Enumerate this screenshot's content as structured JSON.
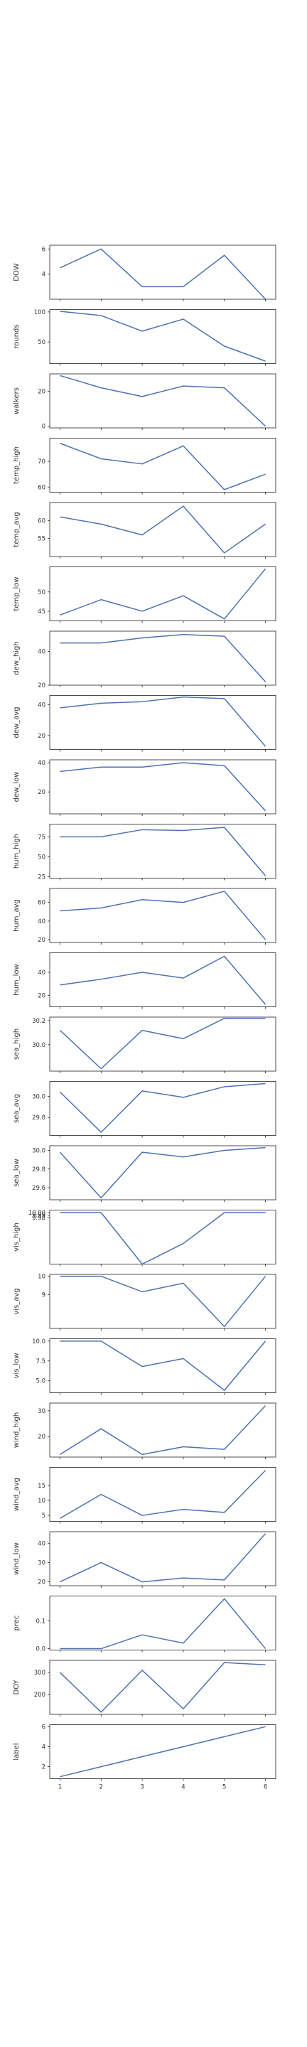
{
  "colors": {
    "line": "#4c72b0",
    "axes": "#222222",
    "tick_text": "#333333"
  },
  "chart_data": [
    {
      "type": "line",
      "ylabel": "DOW",
      "x": [
        1,
        2,
        3,
        4,
        5,
        6
      ],
      "values": [
        4.5,
        6.0,
        3.0,
        3.0,
        5.5,
        2.0
      ],
      "ylim": [
        2,
        6.3
      ],
      "yticks": [
        "6",
        "4"
      ],
      "ytick_values": [
        6,
        4
      ],
      "xticks": [
        "1",
        "2",
        "3",
        "4",
        "5",
        "6"
      ]
    },
    {
      "type": "line",
      "ylabel": "rounds",
      "x": [
        1,
        2,
        3,
        4,
        5,
        6
      ],
      "values": [
        101,
        94,
        68,
        88,
        43,
        18
      ],
      "ylim": [
        14,
        104
      ],
      "yticks": [
        "100",
        "50"
      ],
      "ytick_values": [
        100,
        50
      ],
      "xticks": [
        "1",
        "2",
        "3",
        "4",
        "5",
        "6"
      ]
    },
    {
      "type": "line",
      "ylabel": "walkers",
      "x": [
        1,
        2,
        3,
        4,
        5,
        6
      ],
      "values": [
        29,
        22,
        17,
        23,
        22,
        0
      ],
      "ylim": [
        -1,
        30
      ],
      "yticks": [
        "20",
        "0"
      ],
      "ytick_values": [
        20,
        0
      ],
      "xticks": [
        "1",
        "2",
        "3",
        "4",
        "5",
        "6"
      ]
    },
    {
      "type": "line",
      "ylabel": "temp_high",
      "x": [
        1,
        2,
        3,
        4,
        5,
        6
      ],
      "values": [
        77,
        71,
        69,
        76,
        59,
        65
      ],
      "ylim": [
        58,
        79
      ],
      "yticks": [
        "70",
        "60"
      ],
      "ytick_values": [
        70,
        60
      ],
      "xticks": [
        "1",
        "2",
        "3",
        "4",
        "5",
        "6"
      ]
    },
    {
      "type": "line",
      "ylabel": "temp_avg",
      "x": [
        1,
        2,
        3,
        4,
        5,
        6
      ],
      "values": [
        61,
        59,
        56,
        64,
        51,
        59
      ],
      "ylim": [
        50,
        65
      ],
      "yticks": [
        "60",
        "55"
      ],
      "ytick_values": [
        60,
        55
      ],
      "xticks": [
        "1",
        "2",
        "3",
        "4",
        "5",
        "6"
      ]
    },
    {
      "type": "line",
      "ylabel": "temp_low",
      "x": [
        1,
        2,
        3,
        4,
        5,
        6
      ],
      "values": [
        44,
        48,
        45,
        49,
        43,
        56
      ],
      "ylim": [
        42.5,
        56.5
      ],
      "yticks": [
        "50",
        "45"
      ],
      "ytick_values": [
        50,
        45
      ],
      "xticks": [
        "1",
        "2",
        "3",
        "4",
        "5",
        "6"
      ]
    },
    {
      "type": "line",
      "ylabel": "dew_high",
      "x": [
        1,
        2,
        3,
        4,
        5,
        6
      ],
      "values": [
        45,
        45,
        48,
        50,
        49,
        22
      ],
      "ylim": [
        20,
        52
      ],
      "yticks": [
        "40",
        "20"
      ],
      "ytick_values": [
        40,
        20
      ],
      "xticks": [
        "1",
        "2",
        "3",
        "4",
        "5",
        "6"
      ]
    },
    {
      "type": "line",
      "ylabel": "dew_avg",
      "x": [
        1,
        2,
        3,
        4,
        5,
        6
      ],
      "values": [
        38,
        41,
        42,
        45,
        44,
        13
      ],
      "ylim": [
        11,
        46
      ],
      "yticks": [
        "40",
        "20"
      ],
      "ytick_values": [
        40,
        20
      ],
      "xticks": [
        "1",
        "2",
        "3",
        "4",
        "5",
        "6"
      ]
    },
    {
      "type": "line",
      "ylabel": "dew_low",
      "x": [
        1,
        2,
        3,
        4,
        5,
        6
      ],
      "values": [
        34,
        37,
        37,
        40,
        38,
        7
      ],
      "ylim": [
        5,
        42
      ],
      "yticks": [
        "40",
        "20"
      ],
      "ytick_values": [
        40,
        20
      ],
      "xticks": [
        "1",
        "2",
        "3",
        "4",
        "5",
        "6"
      ]
    },
    {
      "type": "line",
      "ylabel": "hum_high",
      "x": [
        1,
        2,
        3,
        4,
        5,
        6
      ],
      "values": [
        75,
        75,
        84,
        83,
        87,
        26
      ],
      "ylim": [
        23,
        91
      ],
      "yticks": [
        "75",
        "50",
        "25"
      ],
      "ytick_values": [
        75,
        50,
        25
      ],
      "xticks": [
        "1",
        "2",
        "3",
        "4",
        "5",
        "6"
      ]
    },
    {
      "type": "line",
      "ylabel": "hum_avg",
      "x": [
        1,
        2,
        3,
        4,
        5,
        6
      ],
      "values": [
        51,
        54,
        63,
        60,
        72,
        20
      ],
      "ylim": [
        17,
        75
      ],
      "yticks": [
        "60",
        "40",
        "20"
      ],
      "ytick_values": [
        60,
        40,
        20
      ],
      "xticks": [
        "1",
        "2",
        "3",
        "4",
        "5",
        "6"
      ]
    },
    {
      "type": "line",
      "ylabel": "hum_low",
      "x": [
        1,
        2,
        3,
        4,
        5,
        6
      ],
      "values": [
        29,
        34,
        40,
        35,
        54,
        12
      ],
      "ylim": [
        10,
        57
      ],
      "yticks": [
        "40",
        "20"
      ],
      "ytick_values": [
        40,
        20
      ],
      "xticks": [
        "1",
        "2",
        "3",
        "4",
        "5",
        "6"
      ]
    },
    {
      "type": "line",
      "ylabel": "sea_high",
      "x": [
        1,
        2,
        3,
        4,
        5,
        6
      ],
      "values": [
        30.12,
        29.8,
        30.12,
        30.05,
        30.22,
        30.22
      ],
      "ylim": [
        29.78,
        30.23
      ],
      "yticks": [
        "30.2",
        "30.0"
      ],
      "ytick_values": [
        30.2,
        30.0
      ],
      "xticks": [
        "1",
        "2",
        "3",
        "4",
        "5",
        "6"
      ]
    },
    {
      "type": "line",
      "ylabel": "sea_avg",
      "x": [
        1,
        2,
        3,
        4,
        5,
        6
      ],
      "values": [
        30.04,
        29.66,
        30.05,
        29.99,
        30.09,
        30.12
      ],
      "ylim": [
        29.63,
        30.14
      ],
      "yticks": [
        "30.0",
        "29.8"
      ],
      "ytick_values": [
        30.0,
        29.8
      ],
      "xticks": [
        "1",
        "2",
        "3",
        "4",
        "5",
        "6"
      ]
    },
    {
      "type": "line",
      "ylabel": "sea_low",
      "x": [
        1,
        2,
        3,
        4,
        5,
        6
      ],
      "values": [
        29.98,
        29.49,
        29.98,
        29.93,
        30.0,
        30.03
      ],
      "ylim": [
        29.47,
        30.05
      ],
      "yticks": [
        "30.0",
        "29.8",
        "29.6"
      ],
      "ytick_values": [
        30.0,
        29.8,
        29.6
      ],
      "xticks": [
        "1",
        "2",
        "3",
        "4",
        "5",
        "6"
      ]
    },
    {
      "type": "line",
      "ylabel": "vis_high",
      "x": [
        1,
        2,
        3,
        4,
        5,
        6
      ],
      "values": [
        10,
        10,
        9.8,
        9.88,
        10,
        10
      ],
      "ylim": [
        9.8,
        10.01
      ],
      "yticks": [
        "10.00",
        "9.99",
        "9.98"
      ],
      "ytick_values": [
        10.0,
        9.99,
        9.98
      ],
      "xticks": [
        "1",
        "2",
        "3",
        "4",
        "5",
        "6"
      ]
    },
    {
      "type": "line",
      "ylabel": "vis_avg",
      "x": [
        1,
        2,
        3,
        4,
        5,
        6
      ],
      "values": [
        10,
        10,
        9.15,
        9.62,
        7.25,
        10
      ],
      "ylim": [
        7.15,
        10.1
      ],
      "yticks": [
        "10",
        "9"
      ],
      "ytick_values": [
        10,
        9
      ],
      "xticks": [
        "1",
        "2",
        "3",
        "4",
        "5",
        "6"
      ]
    },
    {
      "type": "line",
      "ylabel": "vis_low",
      "x": [
        1,
        2,
        3,
        4,
        5,
        6
      ],
      "values": [
        10,
        10,
        6.8,
        7.8,
        3.8,
        10
      ],
      "ylim": [
        3.5,
        10.3
      ],
      "yticks": [
        "10.0",
        "7.5",
        "5.0"
      ],
      "ytick_values": [
        10.0,
        7.5,
        5.0
      ],
      "xticks": [
        "1",
        "2",
        "3",
        "4",
        "5",
        "6"
      ]
    },
    {
      "type": "line",
      "ylabel": "wind_high",
      "x": [
        1,
        2,
        3,
        4,
        5,
        6
      ],
      "values": [
        13,
        23,
        13,
        16,
        15,
        32
      ],
      "ylim": [
        12,
        33
      ],
      "yticks": [
        "30",
        "20"
      ],
      "ytick_values": [
        30,
        20
      ],
      "xticks": [
        "1",
        "2",
        "3",
        "4",
        "5",
        "6"
      ]
    },
    {
      "type": "line",
      "ylabel": "wind_avg",
      "x": [
        1,
        2,
        3,
        4,
        5,
        6
      ],
      "values": [
        4,
        12,
        5,
        7,
        6,
        20
      ],
      "ylim": [
        3,
        21
      ],
      "yticks": [
        "15",
        "10",
        "5"
      ],
      "ytick_values": [
        15,
        10,
        5
      ],
      "xticks": [
        "1",
        "2",
        "3",
        "4",
        "5",
        "6"
      ]
    },
    {
      "type": "line",
      "ylabel": "wind_low",
      "x": [
        1,
        2,
        3,
        4,
        5,
        6
      ],
      "values": [
        20,
        30,
        20,
        22,
        21,
        45
      ],
      "ylim": [
        18,
        46
      ],
      "yticks": [
        "40",
        "30",
        "20"
      ],
      "ytick_values": [
        40,
        30,
        20
      ],
      "xticks": [
        "1",
        "2",
        "3",
        "4",
        "5",
        "6"
      ]
    },
    {
      "type": "line",
      "ylabel": "prec",
      "x": [
        1,
        2,
        3,
        4,
        5,
        6
      ],
      "values": [
        0.0,
        0.0,
        0.05,
        0.02,
        0.18,
        0.0
      ],
      "ylim": [
        -0.005,
        0.19
      ],
      "yticks": [
        "0.1",
        "0.0"
      ],
      "ytick_values": [
        0.1,
        0.0
      ],
      "xticks": [
        "1",
        "2",
        "3",
        "4",
        "5",
        "6"
      ]
    },
    {
      "type": "line",
      "ylabel": "DOY",
      "x": [
        1,
        2,
        3,
        4,
        5,
        6
      ],
      "values": [
        300,
        120,
        310,
        135,
        345,
        335
      ],
      "ylim": [
        110,
        355
      ],
      "yticks": [
        "300",
        "200"
      ],
      "ytick_values": [
        300,
        200
      ],
      "xticks": [
        "1",
        "2",
        "3",
        "4",
        "5",
        "6"
      ]
    },
    {
      "type": "line",
      "ylabel": "label",
      "x": [
        1,
        2,
        3,
        4,
        5,
        6
      ],
      "values": [
        1,
        2,
        3,
        4,
        5,
        6
      ],
      "ylim": [
        0.8,
        6.2
      ],
      "yticks": [
        "6",
        "4",
        "2"
      ],
      "ytick_values": [
        6,
        4,
        2
      ],
      "xticks": [
        "1",
        "2",
        "3",
        "4",
        "5",
        "6"
      ]
    }
  ]
}
